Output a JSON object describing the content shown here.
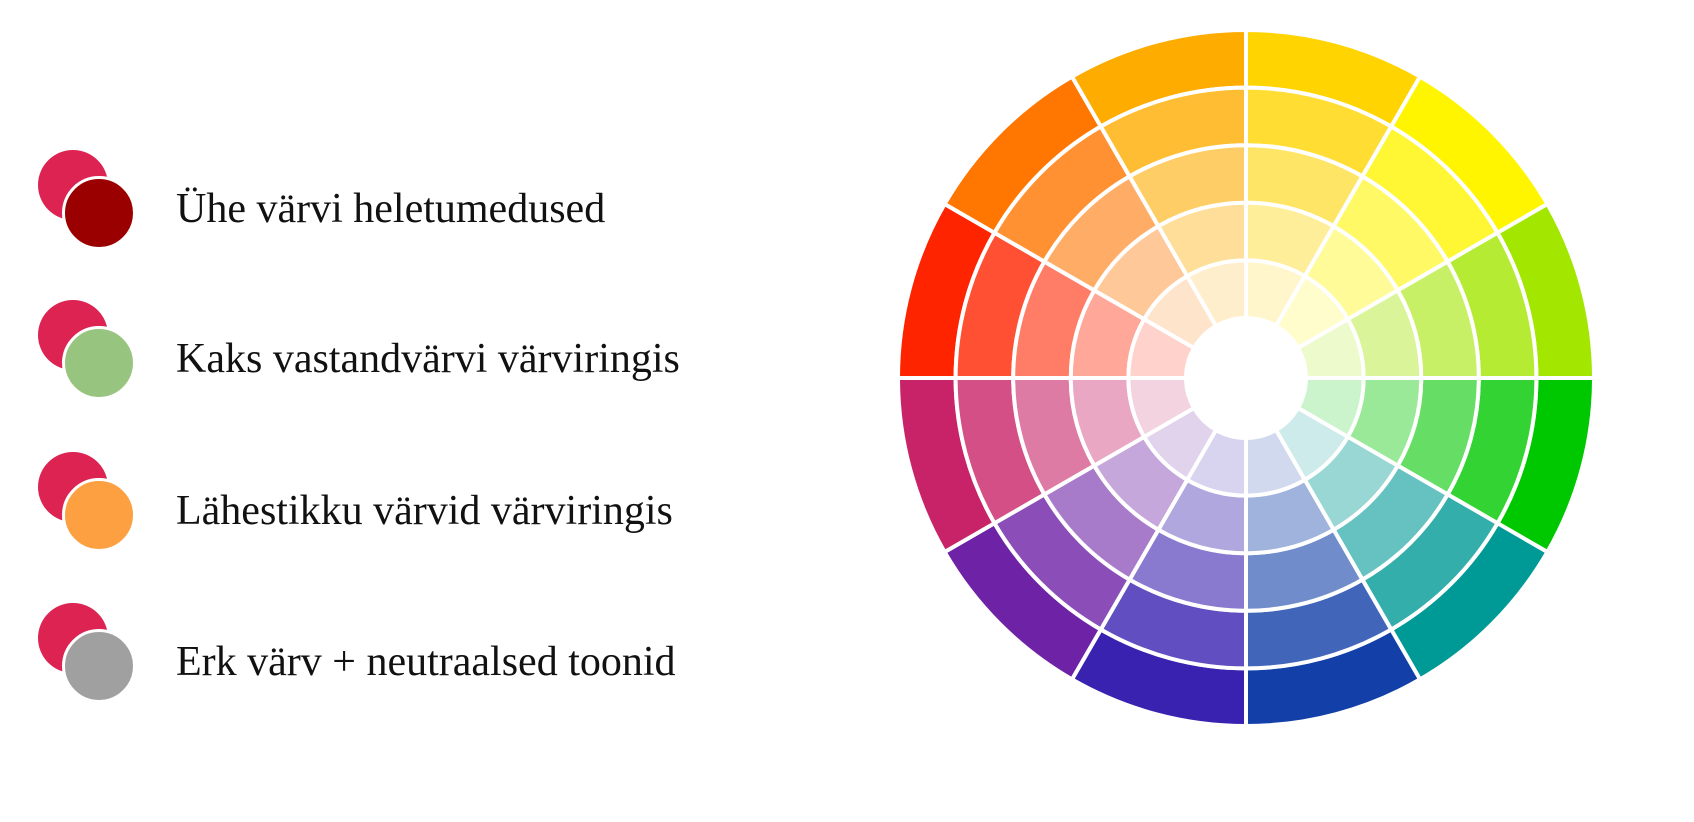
{
  "legend": {
    "base_color": "#dc2352",
    "items": [
      {
        "label": "Ühe värvi heletumedused",
        "pair_color": "#9b0000"
      },
      {
        "label": "Kaks vastandvärvi värviringis",
        "pair_color": "#97c47f"
      },
      {
        "label": "Lähestikku värvid värviringis",
        "pair_color": "#fca041"
      },
      {
        "label": "Erk värv + neutraalsed toonid",
        "pair_color": "#a0a0a0"
      }
    ]
  },
  "color_wheel": {
    "rings": 5,
    "sectors": 12,
    "sector_hues": [
      {
        "name": "yellow-orange",
        "hex": "#ffd400"
      },
      {
        "name": "yellow",
        "hex": "#fff500"
      },
      {
        "name": "yellow-green",
        "hex": "#a3e600"
      },
      {
        "name": "green",
        "hex": "#00c800"
      },
      {
        "name": "blue-green",
        "hex": "#009a96"
      },
      {
        "name": "blue",
        "hex": "#1240a8"
      },
      {
        "name": "blue-violet",
        "hex": "#3a22b0"
      },
      {
        "name": "violet",
        "hex": "#6e22a6"
      },
      {
        "name": "red-violet",
        "hex": "#c82368"
      },
      {
        "name": "red",
        "hex": "#ff2400"
      },
      {
        "name": "red-orange",
        "hex": "#ff7600"
      },
      {
        "name": "orange",
        "hex": "#ffac00"
      }
    ],
    "ring_tints": [
      0.0,
      0.2,
      0.4,
      0.6,
      0.8
    ]
  }
}
